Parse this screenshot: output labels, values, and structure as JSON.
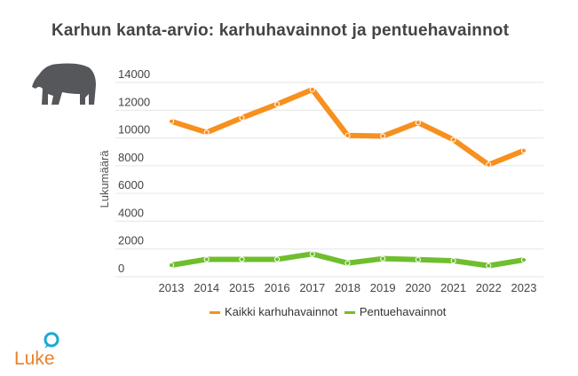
{
  "chart_data": {
    "type": "line",
    "title": "Karhun kanta-arvio: karhuhavainnot ja pentuehavainnot",
    "xlabel": "",
    "ylabel": "Lukumäärä",
    "ylim": [
      0,
      14000
    ],
    "yticks": [
      0,
      2000,
      4000,
      6000,
      8000,
      10000,
      12000,
      14000
    ],
    "grid": true,
    "legend_position": "bottom",
    "categories": [
      "2013",
      "2014",
      "2015",
      "2016",
      "2017",
      "2018",
      "2019",
      "2020",
      "2021",
      "2022",
      "2023"
    ],
    "series": [
      {
        "name": "Kaikki karhuhavainnot",
        "color": "#f7901e",
        "values": [
          11200,
          10400,
          11450,
          12430,
          13490,
          10180,
          10130,
          11110,
          9880,
          8070,
          9090
        ]
      },
      {
        "name": "Pentuehavainnot",
        "color": "#6fbe2e",
        "values": [
          830,
          1250,
          1250,
          1250,
          1640,
          980,
          1300,
          1230,
          1150,
          790,
          1210
        ]
      }
    ]
  },
  "logo": {
    "text": "Luke",
    "color": "#e8822a",
    "accent": "#1ba9d6"
  },
  "icons": {
    "bear": "bear-icon"
  }
}
